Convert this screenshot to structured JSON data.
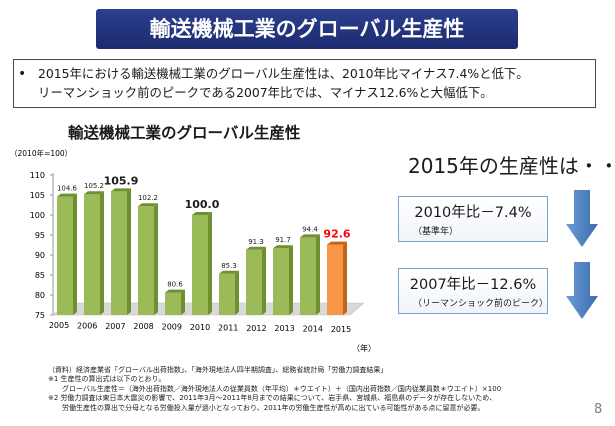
{
  "slide": {
    "title": "輸送機械工業のグローバル生産性",
    "bullets": [
      "2015年における輸送機械工業のグローバル生産性は、2010年比マイナス7.4%と低下。",
      "リーマンショック前のピークである2007年比では、マイナス12.6%と大幅低下。"
    ],
    "bullet_marker": "•",
    "page_number": "8"
  },
  "summary": {
    "heading": "2015年の生産性は・・・",
    "boxes": [
      {
        "main": "2010年比－7.4%",
        "sub": "（基準年）"
      },
      {
        "main": "2007年比－12.6%",
        "sub": "（リーマンショック前のピーク）"
      }
    ],
    "arrow_icon": "down-arrow-icon",
    "arrow_color": "#4f81bd"
  },
  "notes": [
    "（資料）経済産業省「グローバル出荷指数」、「海外現地法人四半期調査」、総務省統計局「労働力調査結果」",
    "※1 生産性の算出式は以下のとおり。",
    "　　グローバル生産性＝（海外出荷指数／海外現地法人の従業員数（年平均）＊ウエイト）＋（国内出荷指数／国内従業員数＊ウエイト）×100",
    "※2 労働力調査は東日本大震災の影響で、2011年3月～2011年8月までの結果について、岩手県、宮城県、福島県のデータが存在しないため、",
    "　　労働生産性の算出で分母となる労働投入量が過小となっており、2011年の労働生産性が高めに出ている可能性がある点に留意が必要。"
  ],
  "chart_data": {
    "type": "bar",
    "title": "輸送機械工業のグローバル生産性",
    "ylabel": "（2010年=100）",
    "xlabel": "（年）",
    "categories": [
      "2005",
      "2006",
      "2007",
      "2008",
      "2009",
      "2010",
      "2011",
      "2012",
      "2013",
      "2014",
      "2015"
    ],
    "values": [
      104.6,
      105.2,
      105.9,
      102.2,
      80.6,
      100.0,
      85.3,
      91.3,
      91.7,
      94.4,
      92.6
    ],
    "labels": [
      "104.6",
      "105.2",
      "105.9",
      "102.2",
      "80.6",
      "100.0",
      "85.3",
      "91.3",
      "91.7",
      "94.4",
      "92.6"
    ],
    "emphasized": [
      "2007",
      "2010",
      "2015"
    ],
    "ylim": [
      75,
      110
    ],
    "yticks": [
      75,
      80,
      85,
      90,
      95,
      100,
      105,
      110
    ],
    "grid": false,
    "colors": {
      "bar": "#9bbb59",
      "bar_dark": "#6e8f32",
      "highlight": "#f79646",
      "highlight_dark": "#c0651d",
      "highlight_label": "#ff0000"
    }
  }
}
